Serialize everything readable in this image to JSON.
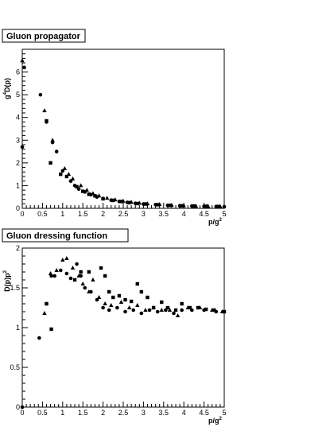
{
  "chart_data": [
    {
      "type": "scatter",
      "title": "Gluon propagator",
      "xlabel": "p/g",
      "xlabel_sup": "2",
      "ylabel": "g",
      "ylabel_sup": "4",
      "ylabel_rest": "D(p)",
      "xlim": [
        0,
        5
      ],
      "ylim": [
        0,
        7
      ],
      "x_ticks": [
        "0",
        "0.5",
        "1",
        "1.5",
        "2",
        "2.5",
        "3",
        "3.5",
        "4",
        "4.5",
        "5"
      ],
      "y_ticks": [
        "0",
        "1",
        "2",
        "3",
        "4",
        "5",
        "6"
      ],
      "grid": false,
      "series": [
        {
          "marker": "circle",
          "points": [
            [
              0.0,
              2.7
            ],
            [
              0.05,
              6.2
            ],
            [
              0.45,
              5.0
            ],
            [
              0.6,
              3.8
            ],
            [
              0.75,
              2.9
            ],
            [
              0.85,
              2.5
            ],
            [
              1.0,
              1.65
            ],
            [
              1.2,
              1.2
            ],
            [
              1.3,
              1.0
            ],
            [
              1.4,
              0.85
            ],
            [
              1.55,
              0.72
            ],
            [
              1.7,
              0.6
            ],
            [
              1.85,
              0.5
            ],
            [
              2.0,
              0.43
            ],
            [
              2.2,
              0.36
            ],
            [
              2.4,
              0.3
            ],
            [
              2.6,
              0.26
            ],
            [
              2.8,
              0.22
            ],
            [
              3.0,
              0.19
            ],
            [
              3.3,
              0.16
            ],
            [
              3.6,
              0.13
            ],
            [
              3.9,
              0.11
            ],
            [
              4.2,
              0.1
            ],
            [
              4.5,
              0.09
            ],
            [
              4.8,
              0.08
            ],
            [
              5.0,
              0.07
            ]
          ]
        },
        {
          "marker": "triangle",
          "points": [
            [
              0.0,
              6.5
            ],
            [
              0.55,
              4.3
            ],
            [
              0.75,
              3.0
            ],
            [
              1.05,
              1.75
            ],
            [
              1.15,
              1.5
            ],
            [
              1.25,
              1.3
            ],
            [
              1.45,
              1.0
            ],
            [
              1.6,
              0.8
            ],
            [
              1.75,
              0.65
            ],
            [
              1.9,
              0.55
            ],
            [
              2.1,
              0.45
            ],
            [
              2.3,
              0.38
            ],
            [
              2.5,
              0.32
            ],
            [
              2.7,
              0.27
            ],
            [
              2.9,
              0.23
            ],
            [
              3.1,
              0.2
            ],
            [
              3.4,
              0.17
            ],
            [
              3.7,
              0.14
            ],
            [
              4.0,
              0.12
            ],
            [
              4.3,
              0.1
            ],
            [
              4.6,
              0.09
            ],
            [
              4.9,
              0.08
            ]
          ]
        },
        {
          "marker": "square",
          "points": [
            [
              0.6,
              3.85
            ],
            [
              0.7,
              2.0
            ],
            [
              0.95,
              1.5
            ],
            [
              1.1,
              1.4
            ],
            [
              1.35,
              0.95
            ],
            [
              1.5,
              0.75
            ],
            [
              1.65,
              0.62
            ],
            [
              1.8,
              0.55
            ],
            [
              2.0,
              0.42
            ],
            [
              2.25,
              0.35
            ],
            [
              2.45,
              0.3
            ],
            [
              2.65,
              0.25
            ],
            [
              2.85,
              0.21
            ],
            [
              3.05,
              0.19
            ],
            [
              3.35,
              0.16
            ],
            [
              3.65,
              0.13
            ],
            [
              3.95,
              0.11
            ],
            [
              4.25,
              0.1
            ],
            [
              4.55,
              0.09
            ],
            [
              4.85,
              0.08
            ]
          ]
        }
      ]
    },
    {
      "type": "scatter",
      "title": "Gluon dressing function",
      "xlabel": "p/g",
      "xlabel_sup": "2",
      "ylabel": "D(p)p",
      "ylabel_sup": "2",
      "xlim": [
        0,
        5
      ],
      "ylim": [
        0,
        2
      ],
      "x_ticks": [
        "0",
        "0.5",
        "1",
        "1.5",
        "2",
        "2.5",
        "3",
        "3.5",
        "4",
        "4.5",
        "5"
      ],
      "y_ticks": [
        "0",
        "0.5",
        "1",
        "1.5",
        "2"
      ],
      "grid": false,
      "series": [
        {
          "marker": "circle",
          "points": [
            [
              0.0,
              0.0
            ],
            [
              0.42,
              0.87
            ],
            [
              0.6,
              1.3
            ],
            [
              0.72,
              1.65
            ],
            [
              0.8,
              1.65
            ],
            [
              0.95,
              1.72
            ],
            [
              1.1,
              1.68
            ],
            [
              1.2,
              1.62
            ],
            [
              1.35,
              1.8
            ],
            [
              1.45,
              1.65
            ],
            [
              1.55,
              1.5
            ],
            [
              1.7,
              1.45
            ],
            [
              1.85,
              1.35
            ],
            [
              2.0,
              1.25
            ],
            [
              2.15,
              1.22
            ],
            [
              2.35,
              1.25
            ],
            [
              2.55,
              1.2
            ],
            [
              2.75,
              1.22
            ],
            [
              2.95,
              1.18
            ],
            [
              3.15,
              1.22
            ],
            [
              3.35,
              1.2
            ],
            [
              3.55,
              1.22
            ],
            [
              3.75,
              1.18
            ],
            [
              3.95,
              1.22
            ],
            [
              4.2,
              1.22
            ],
            [
              4.5,
              1.22
            ],
            [
              4.8,
              1.2
            ]
          ]
        },
        {
          "marker": "triangle",
          "points": [
            [
              0.55,
              1.18
            ],
            [
              0.7,
              1.68
            ],
            [
              0.85,
              1.72
            ],
            [
              1.0,
              1.85
            ],
            [
              1.1,
              1.87
            ],
            [
              1.25,
              1.75
            ],
            [
              1.4,
              1.65
            ],
            [
              1.5,
              1.55
            ],
            [
              1.65,
              1.45
            ],
            [
              1.75,
              1.6
            ],
            [
              1.9,
              1.38
            ],
            [
              2.05,
              1.3
            ],
            [
              2.2,
              1.28
            ],
            [
              2.45,
              1.32
            ],
            [
              2.65,
              1.25
            ],
            [
              2.85,
              1.28
            ],
            [
              3.05,
              1.22
            ],
            [
              3.25,
              1.25
            ],
            [
              3.45,
              1.22
            ],
            [
              3.65,
              1.22
            ],
            [
              3.85,
              1.15
            ],
            [
              4.1,
              1.25
            ],
            [
              4.4,
              1.25
            ],
            [
              4.7,
              1.22
            ],
            [
              4.95,
              1.2
            ]
          ]
        },
        {
          "marker": "square",
          "points": [
            [
              0.6,
              1.3
            ],
            [
              0.72,
              0.98
            ],
            [
              1.3,
              1.6
            ],
            [
              1.45,
              1.7
            ],
            [
              1.65,
              1.7
            ],
            [
              1.95,
              1.75
            ],
            [
              2.05,
              1.65
            ],
            [
              2.15,
              1.45
            ],
            [
              2.25,
              1.38
            ],
            [
              2.4,
              1.4
            ],
            [
              2.55,
              1.35
            ],
            [
              2.7,
              1.33
            ],
            [
              2.85,
              1.55
            ],
            [
              2.95,
              1.45
            ],
            [
              3.1,
              1.38
            ],
            [
              3.25,
              1.25
            ],
            [
              3.45,
              1.32
            ],
            [
              3.6,
              1.25
            ],
            [
              3.8,
              1.22
            ],
            [
              3.95,
              1.3
            ],
            [
              4.15,
              1.25
            ],
            [
              4.35,
              1.25
            ],
            [
              4.55,
              1.23
            ],
            [
              4.75,
              1.22
            ],
            [
              5.0,
              1.2
            ]
          ]
        }
      ]
    }
  ]
}
